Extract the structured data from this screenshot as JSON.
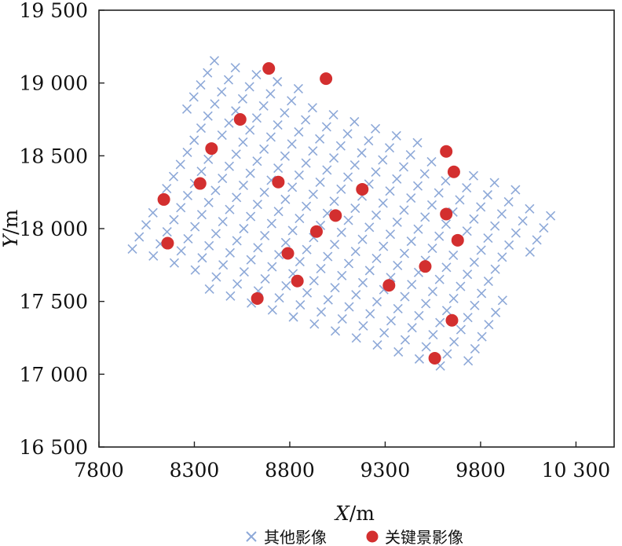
{
  "chart_data": {
    "type": "scatter",
    "title": "",
    "xlabel": {
      "symbol": "X",
      "unit": "/m"
    },
    "ylabel": {
      "symbol": "Y",
      "unit": "/m"
    },
    "xlim": [
      7800,
      10500
    ],
    "ylim": [
      16500,
      19500
    ],
    "xticks": [
      7800,
      8300,
      8800,
      9300,
      9800,
      10300
    ],
    "xtick_labels": [
      "7800",
      "8300",
      "8800",
      "9300",
      "9800",
      "10 300"
    ],
    "yticks": [
      16500,
      17000,
      17500,
      18000,
      18500,
      19000,
      19500
    ],
    "ytick_labels": [
      "16 500",
      "17 000",
      "17 500",
      "18 000",
      "18 500",
      "19 000",
      "19 500"
    ],
    "grid": false,
    "legend_position": "bottom-center",
    "series": [
      {
        "name": "其他影像",
        "marker": "x",
        "color": "#8ea9d8",
        "grid_model": {
          "origin": [
            7975,
            17860
          ],
          "row_step": [
            110,
            -48
          ],
          "col_step": [
            36,
            83
          ],
          "rows": 18,
          "cols": 16,
          "footprint": [
            [
              7975,
              17860
            ],
            [
              8385,
              19260
            ],
            [
              10280,
              18090
            ],
            [
              9950,
              17690
            ],
            [
              9860,
              17120
            ],
            [
              9330,
              16850
            ]
          ]
        }
      },
      {
        "name": "关键景影像",
        "marker": "circle",
        "color": "#d32f2f",
        "points": [
          [
            8690,
            19100
          ],
          [
            8990,
            19030
          ],
          [
            8540,
            18750
          ],
          [
            8390,
            18550
          ],
          [
            8330,
            18310
          ],
          [
            8740,
            18320
          ],
          [
            9180,
            18270
          ],
          [
            8140,
            18200
          ],
          [
            9620,
            18530
          ],
          [
            9660,
            18390
          ],
          [
            9040,
            18090
          ],
          [
            8940,
            17980
          ],
          [
            9620,
            18100
          ],
          [
            9680,
            17920
          ],
          [
            8160,
            17900
          ],
          [
            8790,
            17830
          ],
          [
            9510,
            17740
          ],
          [
            8840,
            17640
          ],
          [
            9320,
            17610
          ],
          [
            8630,
            17520
          ],
          [
            9650,
            17370
          ],
          [
            9560,
            17110
          ]
        ]
      }
    ]
  }
}
